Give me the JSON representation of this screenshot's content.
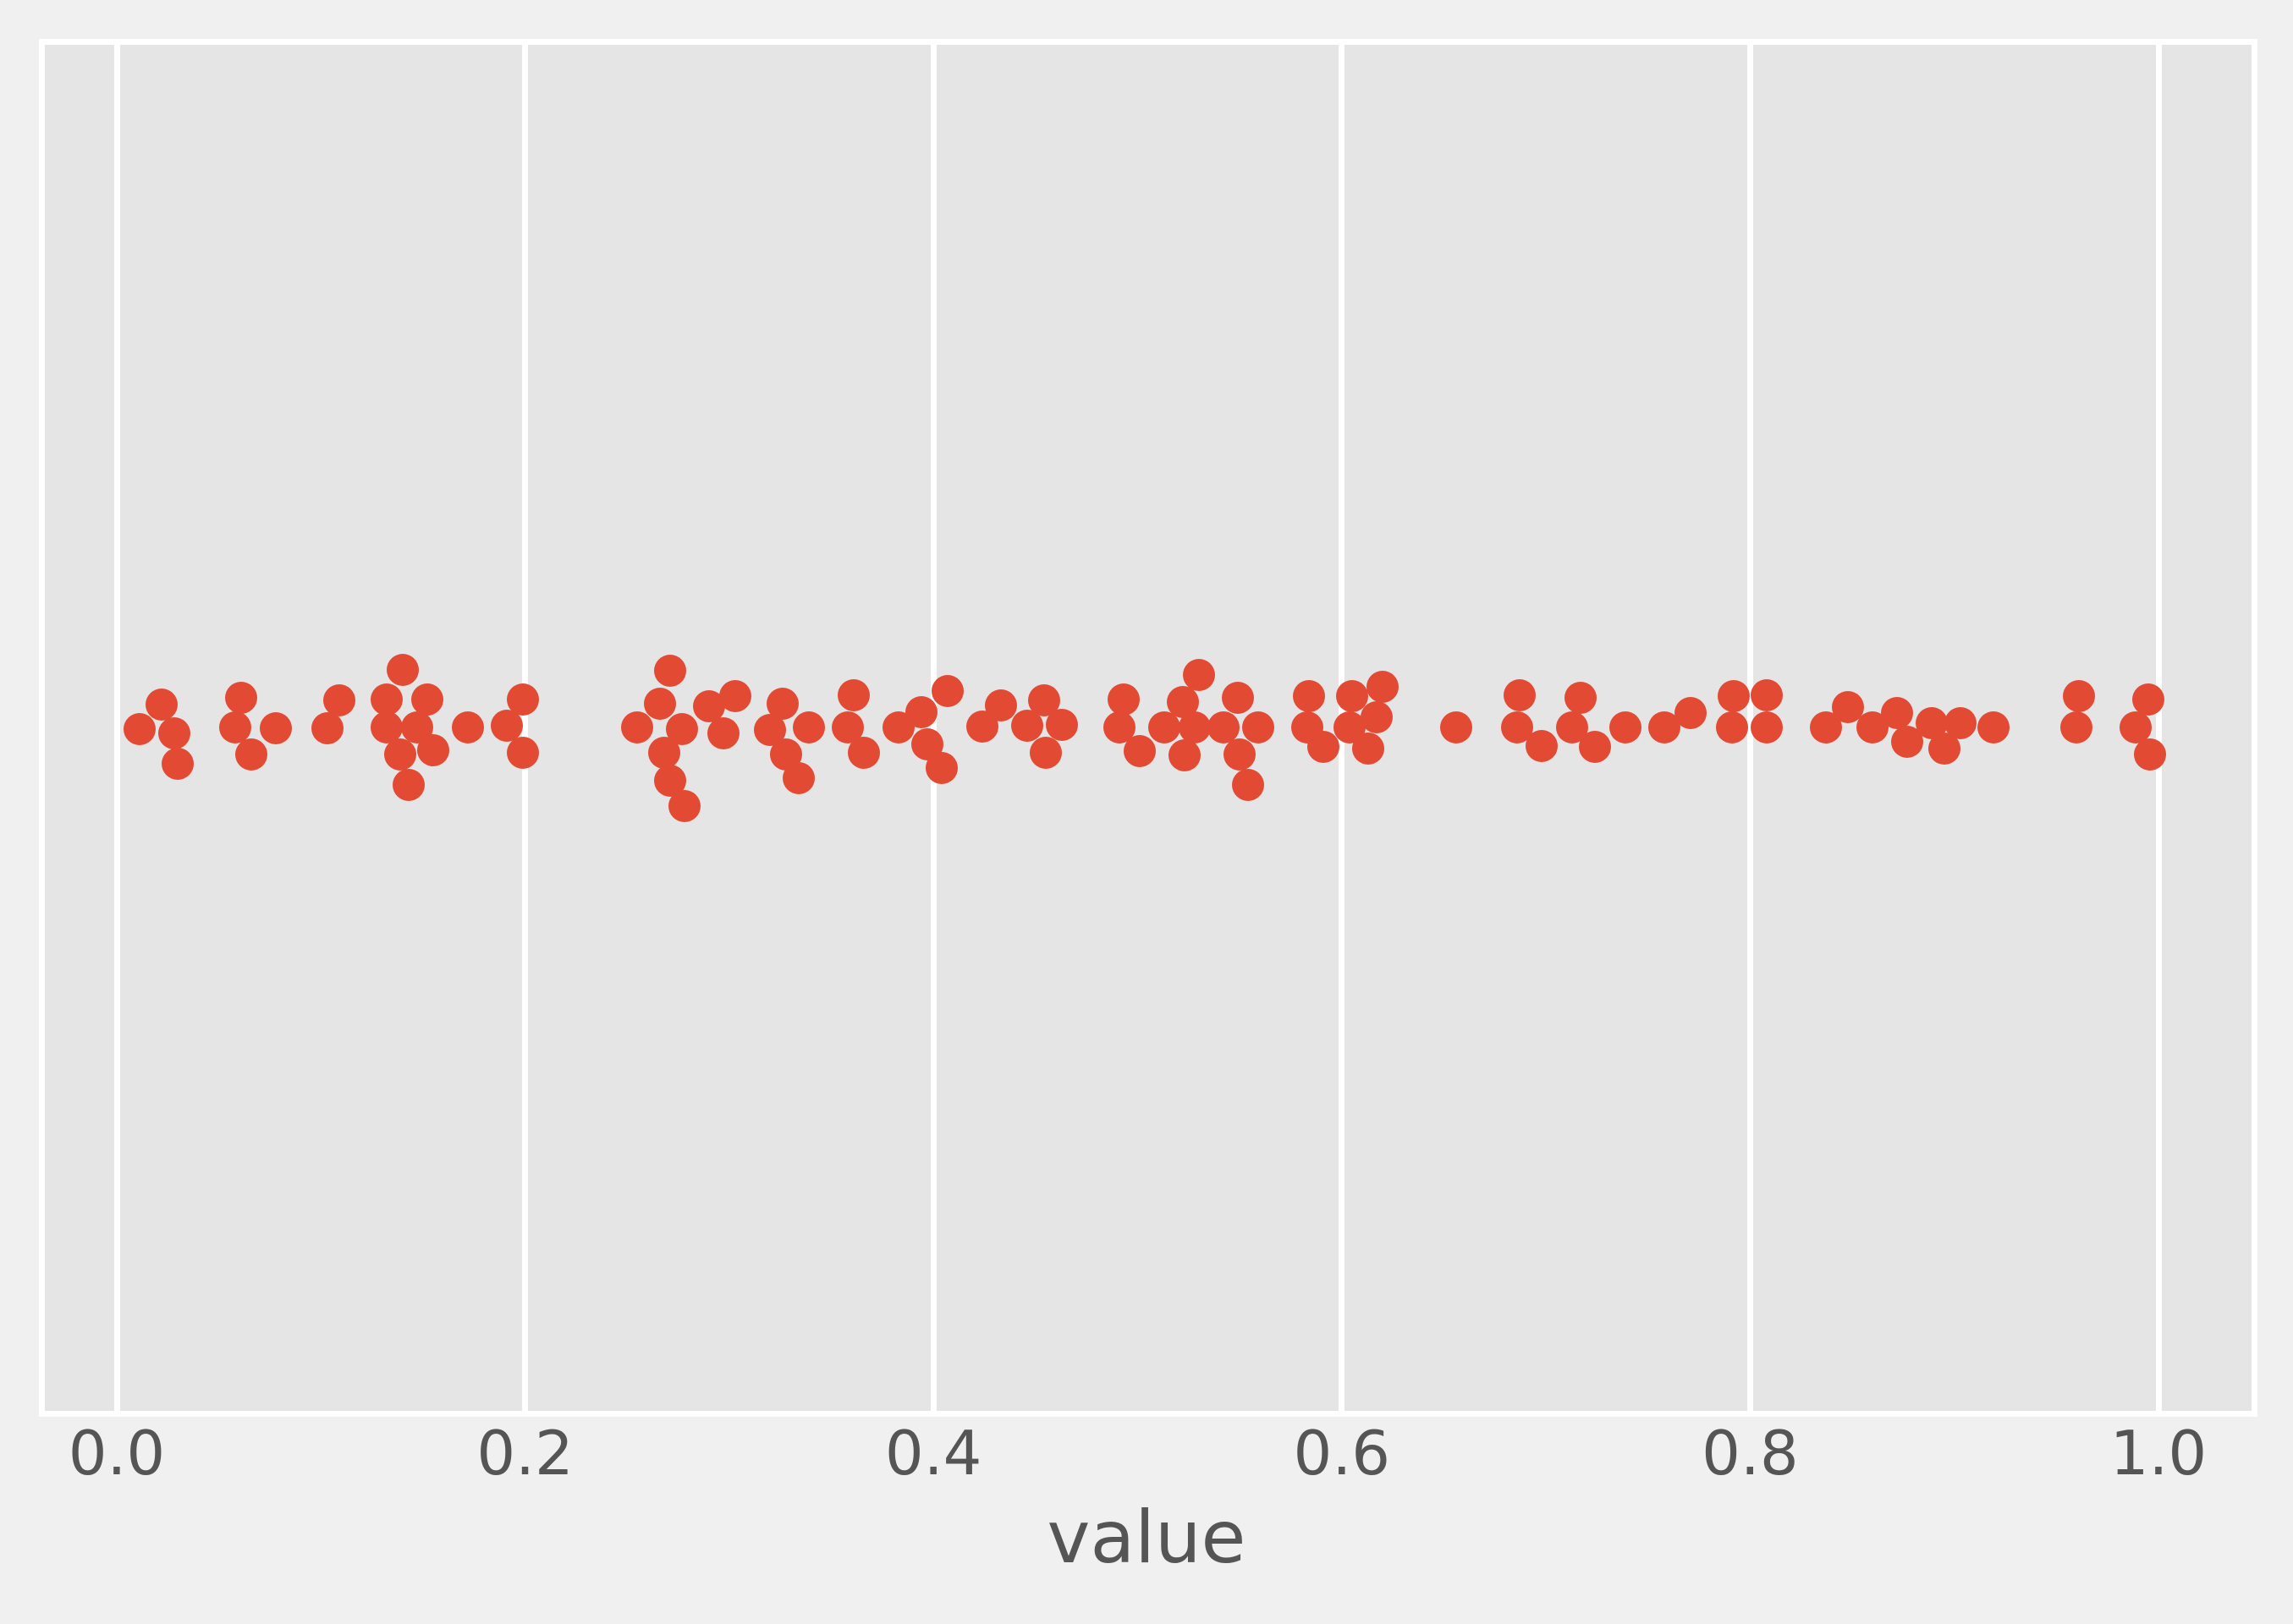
{
  "chart_data": {
    "type": "swarm",
    "description": "Horizontal one-dimensional strip/beeswarm plot of a single numeric variable; dy is the vertical swarm-packing offset in pixels from the strip centerline (layout jitter, not data).",
    "title": "",
    "xlabel": "value",
    "ylabel": "",
    "x_ticks": [
      "0.0",
      "0.2",
      "0.4",
      "0.6",
      "0.8",
      "1.0"
    ],
    "x_tick_values": [
      0.0,
      0.2,
      0.4,
      0.6,
      0.8,
      1.0
    ],
    "xlim": [
      -0.035,
      1.046
    ],
    "grid": "vertical-white-lines-at-ticks",
    "legend": "none",
    "n_points": 100,
    "colors": {
      "marker": "#E24A33",
      "panel_bg": "#E5E5E5",
      "figure_bg": "#F0F0F0",
      "grid": "#FFFFFF",
      "text": "#555555"
    },
    "points": [
      {
        "v": 0.022,
        "dy": -27
      },
      {
        "v": 0.011,
        "dy": 2
      },
      {
        "v": 0.028,
        "dy": 7
      },
      {
        "v": 0.03,
        "dy": 43
      },
      {
        "v": 0.061,
        "dy": -35
      },
      {
        "v": 0.058,
        "dy": 0
      },
      {
        "v": 0.066,
        "dy": 32
      },
      {
        "v": 0.078,
        "dy": 1
      },
      {
        "v": 0.109,
        "dy": -32
      },
      {
        "v": 0.103,
        "dy": 1
      },
      {
        "v": 0.14,
        "dy": -68
      },
      {
        "v": 0.132,
        "dy": -33
      },
      {
        "v": 0.152,
        "dy": -33
      },
      {
        "v": 0.132,
        "dy": 0
      },
      {
        "v": 0.147,
        "dy": 0
      },
      {
        "v": 0.139,
        "dy": 32
      },
      {
        "v": 0.155,
        "dy": 27
      },
      {
        "v": 0.143,
        "dy": 68
      },
      {
        "v": 0.172,
        "dy": 0
      },
      {
        "v": 0.191,
        "dy": -2
      },
      {
        "v": 0.199,
        "dy": -33
      },
      {
        "v": 0.199,
        "dy": 30
      },
      {
        "v": 0.255,
        "dy": 0
      },
      {
        "v": 0.266,
        "dy": -28
      },
      {
        "v": 0.271,
        "dy": -67
      },
      {
        "v": 0.268,
        "dy": 30
      },
      {
        "v": 0.271,
        "dy": 63
      },
      {
        "v": 0.278,
        "dy": 93
      },
      {
        "v": 0.277,
        "dy": 2
      },
      {
        "v": 0.29,
        "dy": -25
      },
      {
        "v": 0.303,
        "dy": -37
      },
      {
        "v": 0.297,
        "dy": 7
      },
      {
        "v": 0.32,
        "dy": 3
      },
      {
        "v": 0.326,
        "dy": -28
      },
      {
        "v": 0.328,
        "dy": 32
      },
      {
        "v": 0.334,
        "dy": 60
      },
      {
        "v": 0.339,
        "dy": 0
      },
      {
        "v": 0.358,
        "dy": 0
      },
      {
        "v": 0.361,
        "dy": -38
      },
      {
        "v": 0.366,
        "dy": 30
      },
      {
        "v": 0.383,
        "dy": 0
      },
      {
        "v": 0.394,
        "dy": -18
      },
      {
        "v": 0.407,
        "dy": -43
      },
      {
        "v": 0.397,
        "dy": 20
      },
      {
        "v": 0.404,
        "dy": 48
      },
      {
        "v": 0.424,
        "dy": -1
      },
      {
        "v": 0.433,
        "dy": -26
      },
      {
        "v": 0.446,
        "dy": -2
      },
      {
        "v": 0.454,
        "dy": -32
      },
      {
        "v": 0.463,
        "dy": -3
      },
      {
        "v": 0.455,
        "dy": 30
      },
      {
        "v": 0.491,
        "dy": 0
      },
      {
        "v": 0.493,
        "dy": -33
      },
      {
        "v": 0.501,
        "dy": 28
      },
      {
        "v": 0.513,
        "dy": 0
      },
      {
        "v": 0.522,
        "dy": -30
      },
      {
        "v": 0.53,
        "dy": -62
      },
      {
        "v": 0.528,
        "dy": 0
      },
      {
        "v": 0.542,
        "dy": 0
      },
      {
        "v": 0.549,
        "dy": -35
      },
      {
        "v": 0.559,
        "dy": 0
      },
      {
        "v": 0.523,
        "dy": 33
      },
      {
        "v": 0.55,
        "dy": 32
      },
      {
        "v": 0.554,
        "dy": 68
      },
      {
        "v": 0.584,
        "dy": -37
      },
      {
        "v": 0.583,
        "dy": 0
      },
      {
        "v": 0.591,
        "dy": 23
      },
      {
        "v": 0.605,
        "dy": -37
      },
      {
        "v": 0.604,
        "dy": 0
      },
      {
        "v": 0.62,
        "dy": -48
      },
      {
        "v": 0.617,
        "dy": -12
      },
      {
        "v": 0.613,
        "dy": 25
      },
      {
        "v": 0.656,
        "dy": 0
      },
      {
        "v": 0.687,
        "dy": -38
      },
      {
        "v": 0.686,
        "dy": 0
      },
      {
        "v": 0.698,
        "dy": 22
      },
      {
        "v": 0.717,
        "dy": -35
      },
      {
        "v": 0.713,
        "dy": 0
      },
      {
        "v": 0.724,
        "dy": 23
      },
      {
        "v": 0.739,
        "dy": 0
      },
      {
        "v": 0.758,
        "dy": 0
      },
      {
        "v": 0.771,
        "dy": -17
      },
      {
        "v": 0.792,
        "dy": -37
      },
      {
        "v": 0.791,
        "dy": 0
      },
      {
        "v": 0.808,
        "dy": -38
      },
      {
        "v": 0.808,
        "dy": 0
      },
      {
        "v": 0.837,
        "dy": 0
      },
      {
        "v": 0.848,
        "dy": -24
      },
      {
        "v": 0.86,
        "dy": 0
      },
      {
        "v": 0.872,
        "dy": -17
      },
      {
        "v": 0.877,
        "dy": 17
      },
      {
        "v": 0.889,
        "dy": -5
      },
      {
        "v": 0.895,
        "dy": 25
      },
      {
        "v": 0.903,
        "dy": -5
      },
      {
        "v": 0.919,
        "dy": 0
      },
      {
        "v": 0.961,
        "dy": -37
      },
      {
        "v": 0.96,
        "dy": 0
      },
      {
        "v": 0.995,
        "dy": -33
      },
      {
        "v": 0.989,
        "dy": 0
      },
      {
        "v": 0.996,
        "dy": 32
      }
    ]
  }
}
